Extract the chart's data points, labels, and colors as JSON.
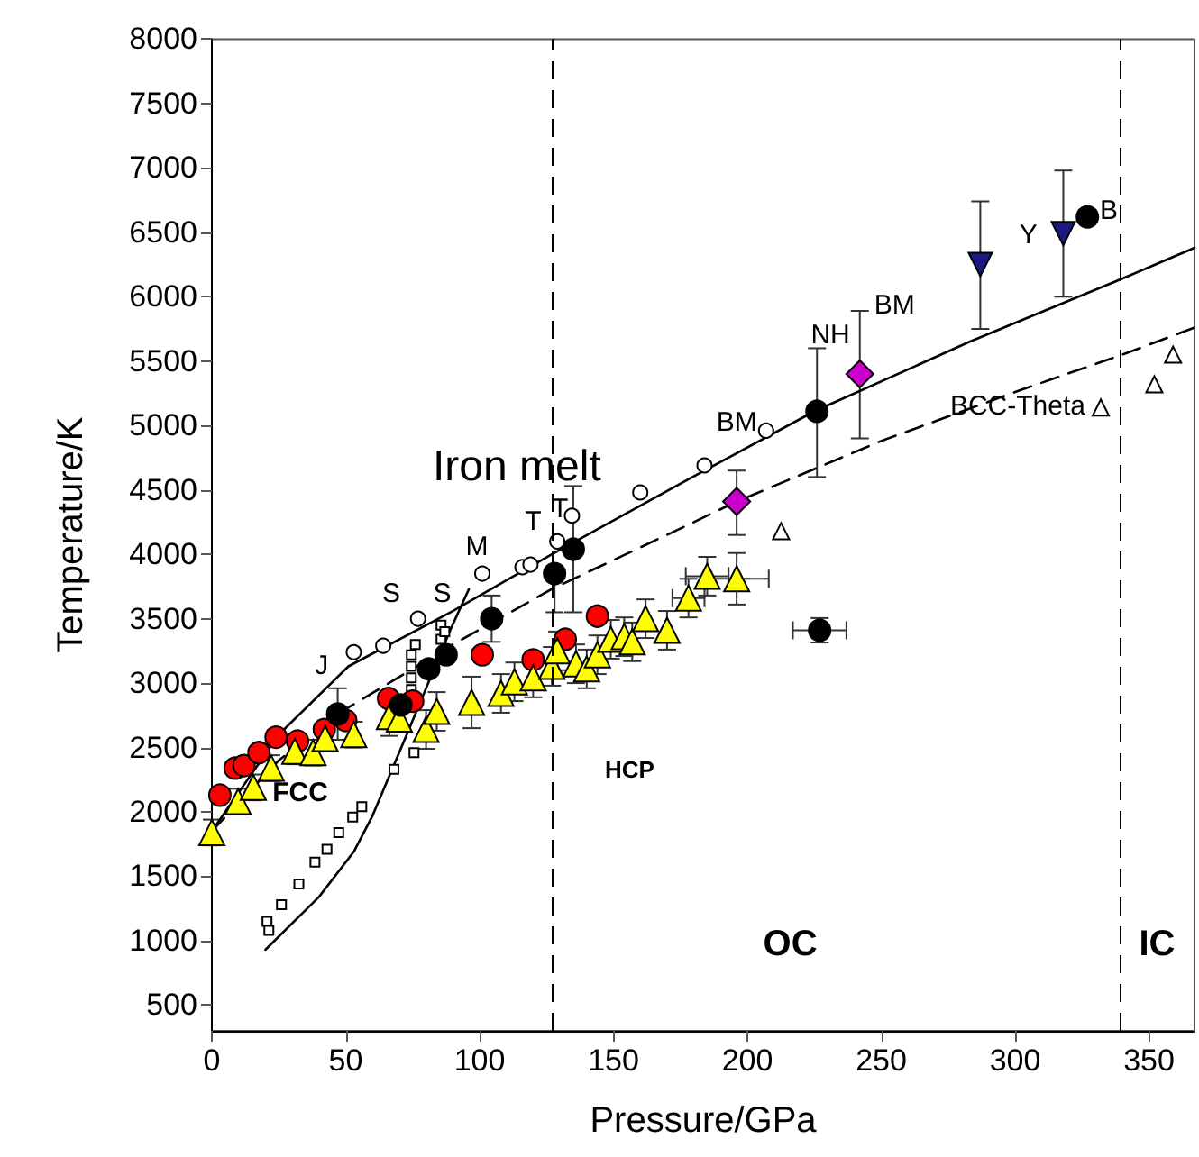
{
  "chart_data": {
    "type": "scatter",
    "title": "Iron melt",
    "xlabel": "Pressure/GPa",
    "ylabel": "Temperature/K",
    "xlim": [
      0,
      367
    ],
    "xticks": [
      0,
      50,
      100,
      150,
      200,
      250,
      300,
      350
    ],
    "ylim": [
      300,
      8000
    ],
    "yticks": [
      500,
      1000,
      1500,
      2000,
      2500,
      3000,
      3500,
      4000,
      4500,
      5000,
      5500,
      6000,
      6500,
      7000,
      7500,
      8000
    ],
    "grid": false,
    "ref_lines": [
      {
        "axis": "x",
        "value": 127,
        "line_style": "dashed",
        "color": "#000000"
      },
      {
        "axis": "x",
        "value": 339,
        "line_style": "dashed",
        "color": "#000000"
      }
    ],
    "series": [
      {
        "type": "line",
        "color": "#000000",
        "line_style": "solid",
        "x": [
          0,
          25,
          51,
          90,
          127,
          176,
          225,
          283,
          340,
          367
        ],
        "values": [
          1850,
          2600,
          3130,
          3560,
          4000,
          4560,
          5110,
          5650,
          6140,
          6380
        ]
      },
      {
        "type": "line",
        "color": "#000000",
        "line_style": "dashed",
        "x": [
          0,
          25,
          51,
          90,
          127,
          176,
          195,
          250,
          300,
          340,
          367
        ],
        "values": [
          1850,
          2400,
          2810,
          3300,
          3730,
          4210,
          4400,
          4880,
          5260,
          5550,
          5760
        ]
      },
      {
        "type": "line",
        "color": "#000000",
        "line_style": "solid",
        "x": [
          20,
          40,
          53,
          60,
          73,
          89,
          96
        ],
        "values": [
          930,
          1340,
          1690,
          1970,
          2610,
          3410,
          3730
        ]
      },
      {
        "marker": "square",
        "color": "#ffffff",
        "x": [
          20.6,
          21.3,
          26,
          32.5,
          38.5,
          43,
          47.4,
          52.6,
          56,
          68,
          75.5,
          74.5,
          74.5,
          74.5,
          74.5,
          76,
          85.6,
          85.6,
          87
        ],
        "values": [
          1150,
          1080,
          1280,
          1440,
          1610,
          1710,
          1840,
          1960,
          2040,
          2330,
          2460,
          2950,
          3040,
          3130,
          3220,
          3300,
          3340,
          3450,
          3400
        ]
      },
      {
        "marker": "circle",
        "color": "#ffffff",
        "x": [
          53,
          64,
          77,
          101,
          116,
          119,
          129,
          134.5,
          160,
          184,
          207
        ],
        "values": [
          3240,
          3290,
          3500,
          3850,
          3900,
          3920,
          4100,
          4300,
          4480,
          4690,
          4960
        ]
      },
      {
        "marker": "triangle",
        "color": "#ffffff",
        "x": [
          212.6,
          332,
          352,
          359
        ],
        "values": [
          4180,
          5140,
          5320,
          5550
        ]
      },
      {
        "marker": "circle",
        "color": "#ff0000",
        "x": [
          3,
          8.7,
          12,
          17.6,
          24,
          32,
          42,
          50,
          66,
          75,
          101,
          120,
          132,
          144
        ],
        "values": [
          2130,
          2340,
          2360,
          2460,
          2580,
          2550,
          2640,
          2710,
          2880,
          2860,
          3220,
          3180,
          3340,
          3520
        ]
      },
      {
        "marker": "triangle",
        "color": "#ffff00",
        "x": [
          0,
          9.8,
          15.5,
          22.2,
          31,
          37.8,
          42.3,
          53,
          66.3,
          70,
          80,
          84,
          97,
          108,
          113,
          120,
          127,
          129,
          136,
          140,
          144,
          149,
          154,
          157,
          162,
          170,
          178,
          185,
          196
        ],
        "values": [
          1840,
          2080,
          2190,
          2340,
          2470,
          2460,
          2570,
          2600,
          2740,
          2720,
          2640,
          2780,
          2850,
          2920,
          3010,
          3040,
          3130,
          3250,
          3150,
          3110,
          3220,
          3340,
          3360,
          3320,
          3500,
          3410,
          3660,
          3830,
          3810
        ],
        "errors": [
          100,
          100,
          100,
          100,
          100,
          100,
          100,
          100,
          150,
          null,
          150,
          150,
          200,
          150,
          150,
          150,
          150,
          150,
          150,
          150,
          150,
          150,
          150,
          150,
          150,
          150,
          150,
          150,
          200
        ],
        "xerrors": [
          null,
          null,
          null,
          null,
          null,
          null,
          null,
          null,
          null,
          null,
          null,
          null,
          null,
          null,
          null,
          null,
          null,
          null,
          null,
          null,
          null,
          null,
          null,
          null,
          null,
          null,
          6,
          8,
          12
        ]
      },
      {
        "marker": "circle",
        "color": "#000000",
        "x": [
          47,
          70.6,
          81,
          87.5,
          104.5,
          128,
          135,
          226,
          227,
          327
        ],
        "values": [
          2760,
          2830,
          3110,
          3220,
          3500,
          3850,
          4040,
          5110,
          3410,
          6620
        ],
        "errors": [
          200,
          null,
          null,
          null,
          180,
          [
            3550,
            3850
          ],
          [
            3550,
            4530
          ],
          [
            4600,
            5600
          ],
          95,
          null
        ],
        "xerrors": [
          null,
          null,
          null,
          null,
          null,
          null,
          null,
          null,
          10,
          null
        ]
      },
      {
        "marker": "diamond",
        "color": "#cc00cc",
        "x": [
          196,
          242
        ],
        "values": [
          4410,
          5400
        ],
        "errors": [
          [
            4150,
            4650
          ],
          [
            4900,
            5890
          ]
        ]
      },
      {
        "marker": "triangle-down",
        "color": "#1a1a80",
        "x": [
          287,
          318
        ],
        "values": [
          6250,
          6490
        ],
        "errors": [
          [
            5750,
            6740
          ],
          [
            6000,
            6980
          ]
        ]
      }
    ],
    "annotations": [
      "J",
      "S",
      "S",
      "M",
      "T",
      "T",
      "BM",
      "NH",
      "BM",
      "Y",
      "B",
      "BCC-Theta",
      "FCC",
      "HCP",
      "OC",
      "IC"
    ]
  }
}
